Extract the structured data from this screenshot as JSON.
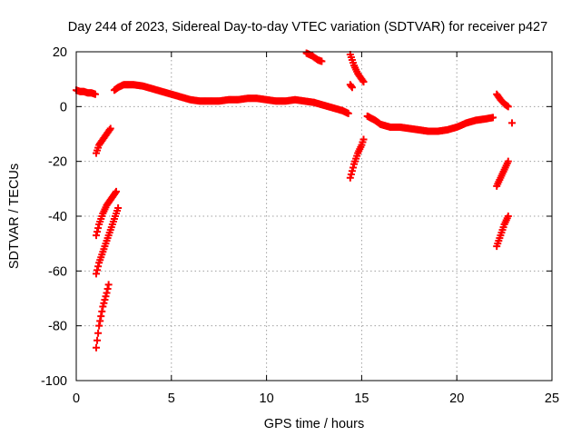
{
  "chart_data": {
    "type": "scatter",
    "title": "Day 244 of 2023, Sidereal Day-to-day VTEC variation (SDTVAR) for receiver p427",
    "xlabel": "GPS time / hours",
    "ylabel": "SDTVAR / TECUs",
    "xlim": [
      0,
      25
    ],
    "ylim": [
      -100,
      20
    ],
    "x_ticks": [
      0,
      5,
      10,
      15,
      20,
      25
    ],
    "x_tick_labels": [
      "0",
      "5",
      "10",
      "15",
      "20",
      "25"
    ],
    "y_ticks": [
      -100,
      -80,
      -60,
      -40,
      -20,
      0,
      20
    ],
    "y_tick_labels": [
      "-100",
      "-80",
      "-60",
      "-40",
      "-20",
      "0",
      "20"
    ],
    "grid": true,
    "marker": "plus",
    "marker_color": "#ff0000",
    "series": [
      {
        "name": "SDTVAR",
        "segments": [
          {
            "x": [
              0.0,
              0.2,
              0.4,
              0.6,
              0.8,
              1.0
            ],
            "y": [
              6,
              5.5,
              5.5,
              5,
              5,
              4.5
            ]
          },
          {
            "x": [
              1.05,
              1.2,
              1.4,
              1.6,
              1.8
            ],
            "y": [
              -17,
              -14,
              -12,
              -10,
              -8
            ]
          },
          {
            "x": [
              1.05,
              1.2,
              1.4,
              1.6,
              1.8,
              2.0,
              2.1
            ],
            "y": [
              -47,
              -43,
              -39,
              -36,
              -34,
              -32,
              -31
            ]
          },
          {
            "x": [
              1.05,
              1.2,
              1.4,
              1.6,
              1.8,
              2.0,
              2.2
            ],
            "y": [
              -61,
              -57,
              -53,
              -49,
              -45,
              -41,
              -37
            ]
          },
          {
            "x": [
              1.05,
              1.2,
              1.4,
              1.6,
              1.7
            ],
            "y": [
              -88,
              -80,
              -73,
              -68,
              -65
            ]
          },
          {
            "x": [
              2.0,
              2.2,
              2.5,
              3.0,
              3.5,
              4.0,
              4.5,
              5.0,
              5.5,
              6.0,
              6.5,
              7.0,
              7.5,
              8.0,
              8.5,
              9.0,
              9.5,
              10.0,
              10.5,
              11.0,
              11.5,
              12.0,
              12.5,
              13.0,
              13.5,
              14.0,
              14.3
            ],
            "y": [
              6,
              7,
              8,
              8,
              7.5,
              6.5,
              5.5,
              4.5,
              3.5,
              2.5,
              2,
              2,
              2,
              2.5,
              2.5,
              3,
              3,
              2.5,
              2,
              2,
              2.5,
              2,
              1.5,
              0.5,
              -0.5,
              -1.5,
              -2.5
            ]
          },
          {
            "x": [
              12.1,
              12.4,
              12.7,
              12.9
            ],
            "y": [
              19.5,
              18.5,
              17,
              16.5
            ]
          },
          {
            "x": [
              14.4,
              14.6,
              14.8,
              15.0,
              15.1
            ],
            "y": [
              19,
              15,
              12,
              10,
              9
            ]
          },
          {
            "x": [
              14.4,
              14.5
            ],
            "y": [
              8,
              7
            ]
          },
          {
            "x": [
              14.4,
              14.6,
              14.8,
              15.0,
              15.1
            ],
            "y": [
              -26,
              -21,
              -17,
              -14,
              -12
            ]
          },
          {
            "x": [
              15.3,
              15.7,
              16.0,
              16.5,
              17.0,
              17.5,
              18.0,
              18.5,
              19.0,
              19.5,
              20.0,
              20.5,
              21.0,
              21.5,
              21.9
            ],
            "y": [
              -3.5,
              -5,
              -6.5,
              -7.5,
              -7.5,
              -8,
              -8.5,
              -9,
              -9,
              -8.5,
              -7.5,
              -6,
              -5,
              -4.5,
              -4
            ]
          },
          {
            "x": [
              22.1,
              22.3,
              22.5,
              22.7
            ],
            "y": [
              4.5,
              2.5,
              1,
              0
            ]
          },
          {
            "x": [
              22.1,
              22.3,
              22.5,
              22.7
            ],
            "y": [
              -29,
              -26,
              -23,
              -20
            ]
          },
          {
            "x": [
              22.1,
              22.3,
              22.5,
              22.7
            ],
            "y": [
              -51,
              -47,
              -43,
              -40
            ]
          },
          {
            "x": [
              22.9
            ],
            "y": [
              -6
            ]
          }
        ]
      }
    ]
  }
}
